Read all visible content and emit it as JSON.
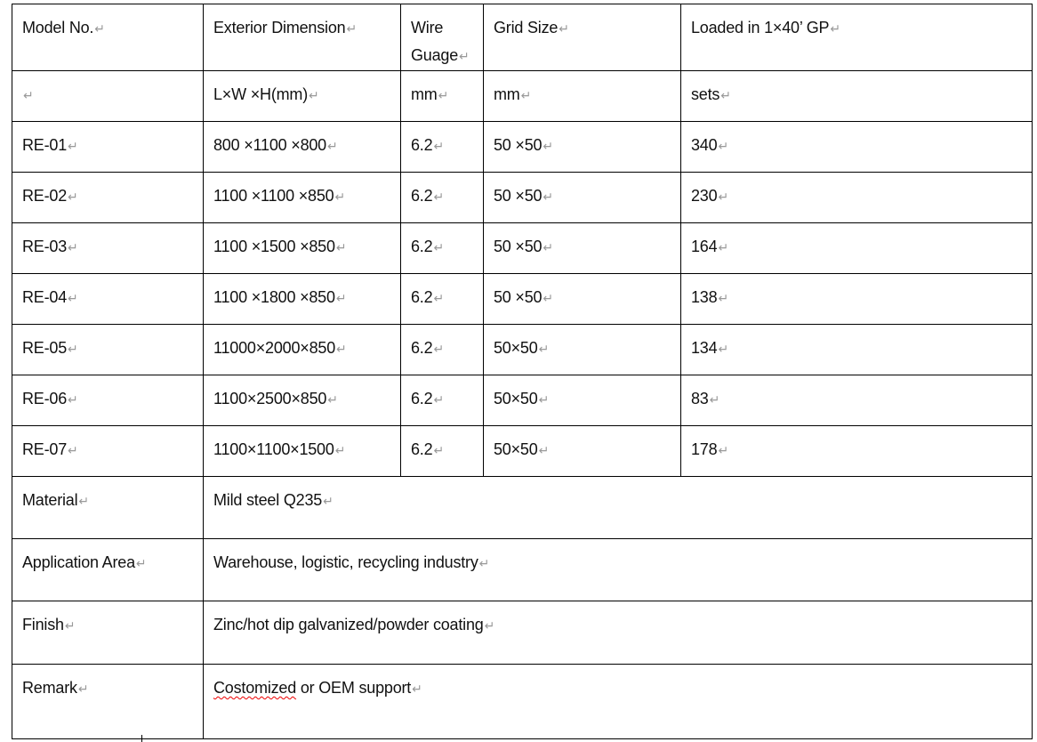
{
  "table": {
    "headers": [
      "Model No.",
      "Exterior Dimension",
      "Wire Guage",
      "Grid Size",
      "Loaded in 1×40’ GP"
    ],
    "units": [
      "",
      "L×W ×H(mm)",
      "mm",
      "mm",
      "sets"
    ],
    "rows": [
      [
        "RE-01",
        "800 ×1100 ×800",
        "6.2",
        "50 ×50",
        "340"
      ],
      [
        "RE-02",
        "1100 ×1100 ×850",
        "6.2",
        "50 ×50",
        "230"
      ],
      [
        "RE-03",
        "1100 ×1500 ×850",
        "6.2",
        "50 ×50",
        "164"
      ],
      [
        "RE-04",
        "1100 ×1800 ×850",
        "6.2",
        "50 ×50",
        "138"
      ],
      [
        "RE-05",
        "11000×2000×850",
        "6.2",
        "50×50",
        "134"
      ],
      [
        "RE-06",
        "1100×2500×850",
        "6.2",
        "50×50",
        "83"
      ],
      [
        "RE-07",
        "1100×1100×1500",
        "6.2",
        "50×50",
        "178"
      ]
    ],
    "specs": [
      {
        "label": "Material",
        "value": "Mild steel Q235"
      },
      {
        "label": "Application Area",
        "value": "Warehouse, logistic, recycling industry"
      },
      {
        "label": "Finish",
        "value": "Zinc/hot dip galvanized/powder coating"
      },
      {
        "label": "Remark",
        "value_misspelled": "Costomized",
        "value_rest": " or OEM support"
      }
    ]
  }
}
